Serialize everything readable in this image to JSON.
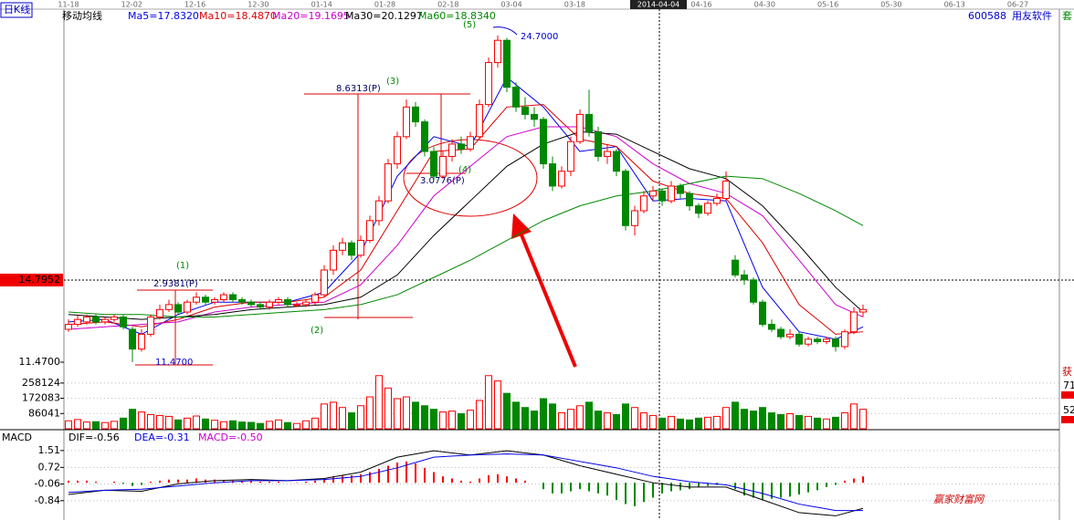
{
  "header": {
    "period": "日K线",
    "indicator": "移动均线",
    "code": "600588",
    "stock_name": "用友软件"
  },
  "side_panel": {
    "tab": "套",
    "label": "获",
    "values": [
      "71.",
      "52."
    ]
  },
  "watermark": "赢家财富网",
  "annotations": {
    "wave_1": "(1)",
    "move_1": "2.9381(P)",
    "low": "11.4700",
    "wave_2": "(2)",
    "move_2": "8.6313(P)",
    "wave_3": "(3)",
    "move_3": "3.0776(P)",
    "wave_4": "(4)",
    "wave_5": "(5)",
    "high": "24.7000"
  },
  "chart_data": [
    {
      "type": "candlestick",
      "up_color": "#ff0000",
      "down_color": "#008800",
      "ylim": [
        11.285,
        25.32
      ],
      "yticks": [
        14.7952,
        {
          "value": 11.47,
          "label": "11.4700"
        }
      ],
      "x_labels": [
        "11-18",
        "12-02",
        "12-16",
        "12-30",
        "01-14",
        "01-28",
        "02-18",
        "03-04",
        "03-18",
        null,
        "04-16",
        "04-30",
        "05-16",
        "05-30",
        "06-13",
        "06-27"
      ],
      "cursor_label": "2014-04-04",
      "ohlc": [
        [
          12.8,
          13.2,
          12.7,
          13.0
        ],
        [
          13.0,
          13.4,
          12.9,
          13.2
        ],
        [
          13.1,
          13.4,
          13.0,
          13.3
        ],
        [
          13.3,
          13.4,
          13.0,
          13.1
        ],
        [
          13.1,
          13.3,
          13.0,
          13.2
        ],
        [
          13.2,
          13.4,
          13.1,
          13.3
        ],
        [
          13.3,
          13.4,
          12.8,
          12.9
        ],
        [
          12.8,
          12.9,
          11.47,
          12.0
        ],
        [
          12.0,
          12.8,
          11.9,
          12.6
        ],
        [
          12.6,
          13.4,
          12.5,
          13.3
        ],
        [
          13.3,
          13.8,
          13.2,
          13.6
        ],
        [
          13.6,
          14.0,
          13.5,
          13.8
        ],
        [
          13.8,
          13.9,
          13.4,
          13.5
        ],
        [
          13.5,
          14.0,
          13.4,
          13.9
        ],
        [
          13.9,
          14.3,
          13.8,
          14.1
        ],
        [
          14.1,
          14.2,
          13.8,
          13.9
        ],
        [
          13.9,
          14.1,
          13.8,
          14.0
        ],
        [
          14.0,
          14.3,
          13.9,
          14.2
        ],
        [
          14.2,
          14.3,
          13.9,
          14.0
        ],
        [
          14.0,
          14.1,
          13.8,
          13.9
        ],
        [
          13.9,
          14.0,
          13.7,
          13.8
        ],
        [
          13.8,
          13.9,
          13.6,
          13.7
        ],
        [
          13.7,
          14.0,
          13.6,
          13.9
        ],
        [
          13.9,
          14.1,
          13.8,
          14.0
        ],
        [
          14.0,
          14.1,
          13.7,
          13.8
        ],
        [
          13.8,
          13.9,
          13.7,
          13.8
        ],
        [
          13.8,
          14.0,
          13.7,
          13.9
        ],
        [
          13.9,
          14.3,
          13.8,
          14.2
        ],
        [
          14.2,
          15.4,
          14.1,
          15.2
        ],
        [
          15.2,
          16.2,
          15.0,
          16.0
        ],
        [
          16.0,
          16.5,
          15.8,
          16.3
        ],
        [
          16.3,
          16.4,
          15.6,
          15.8
        ],
        [
          15.8,
          16.6,
          15.7,
          16.4
        ],
        [
          16.4,
          17.4,
          16.3,
          17.2
        ],
        [
          17.2,
          18.2,
          17.0,
          18.0
        ],
        [
          18.0,
          19.7,
          17.9,
          19.5
        ],
        [
          19.5,
          20.8,
          19.3,
          20.6
        ],
        [
          20.6,
          22.1,
          20.5,
          21.8
        ],
        [
          21.8,
          22.0,
          21.0,
          21.2
        ],
        [
          21.2,
          21.3,
          19.8,
          20.0
        ],
        [
          20.0,
          20.2,
          18.8,
          19.0
        ],
        [
          19.0,
          20.0,
          18.9,
          19.8
        ],
        [
          19.8,
          20.5,
          19.6,
          20.3
        ],
        [
          20.3,
          20.6,
          19.9,
          20.1
        ],
        [
          20.1,
          20.8,
          20.0,
          20.6
        ],
        [
          20.6,
          22.1,
          20.5,
          21.9
        ],
        [
          21.9,
          23.8,
          21.8,
          23.6
        ],
        [
          23.6,
          24.7,
          23.4,
          24.5
        ],
        [
          24.5,
          24.6,
          22.4,
          22.6
        ],
        [
          22.6,
          22.8,
          21.6,
          21.8
        ],
        [
          21.8,
          22.2,
          21.3,
          21.5
        ],
        [
          21.5,
          21.8,
          21.0,
          21.3
        ],
        [
          21.3,
          21.4,
          19.3,
          19.5
        ],
        [
          19.5,
          19.8,
          18.4,
          18.6
        ],
        [
          18.6,
          19.4,
          18.5,
          19.2
        ],
        [
          19.2,
          20.6,
          19.0,
          20.4
        ],
        [
          20.4,
          21.7,
          20.3,
          21.5
        ],
        [
          21.5,
          22.5,
          20.6,
          20.8
        ],
        [
          20.8,
          21.0,
          19.6,
          19.8
        ],
        [
          19.8,
          20.3,
          19.5,
          20.0
        ],
        [
          20.0,
          20.1,
          19.0,
          19.2
        ],
        [
          19.2,
          19.3,
          16.8,
          17.0
        ],
        [
          17.0,
          17.8,
          16.6,
          17.6
        ],
        [
          17.6,
          18.4,
          17.5,
          18.2
        ],
        [
          18.2,
          18.6,
          18.0,
          18.4
        ],
        [
          18.4,
          18.5,
          17.8,
          18.0
        ],
        [
          18.0,
          18.8,
          17.9,
          18.6
        ],
        [
          18.6,
          18.7,
          18.1,
          18.3
        ],
        [
          18.3,
          18.4,
          17.6,
          17.8
        ],
        [
          17.8,
          17.9,
          17.3,
          17.5
        ],
        [
          17.5,
          18.0,
          17.4,
          17.9
        ],
        [
          17.9,
          18.3,
          17.8,
          18.1
        ],
        [
          18.1,
          19.2,
          18.0,
          18.8
        ],
        [
          15.6,
          15.8,
          14.9,
          15.0
        ],
        [
          15.0,
          15.2,
          14.6,
          14.8
        ],
        [
          14.8,
          14.9,
          13.8,
          13.9
        ],
        [
          13.9,
          14.0,
          12.9,
          13.0
        ],
        [
          13.0,
          13.2,
          12.7,
          12.8
        ],
        [
          12.8,
          12.9,
          12.4,
          12.5
        ],
        [
          12.5,
          12.8,
          12.4,
          12.6
        ],
        [
          12.6,
          12.7,
          12.1,
          12.2
        ],
        [
          12.2,
          12.5,
          12.1,
          12.4
        ],
        [
          12.4,
          12.5,
          12.2,
          12.3
        ],
        [
          12.3,
          12.5,
          12.2,
          12.4
        ],
        [
          12.4,
          12.5,
          11.9,
          12.1
        ],
        [
          12.1,
          12.8,
          12.0,
          12.7
        ],
        [
          12.7,
          13.7,
          12.6,
          13.5
        ],
        [
          13.5,
          13.8,
          13.3,
          13.6
        ]
      ],
      "ma_x": [
        0,
        4,
        8,
        12,
        16,
        20,
        24,
        28,
        32,
        36,
        40,
        44,
        48,
        52,
        56,
        60,
        64,
        68,
        72,
        76,
        80,
        84,
        87
      ],
      "series": [
        {
          "name": "Ma5=17.8320",
          "color": "#0000ee",
          "values": [
            13.1,
            13.2,
            12.6,
            13.4,
            13.9,
            13.9,
            13.9,
            14.3,
            15.9,
            19.0,
            20.6,
            20.2,
            23.0,
            21.8,
            20.0,
            20.2,
            18.0,
            18.1,
            18.0,
            14.5,
            12.7,
            12.4,
            12.9
          ]
        },
        {
          "name": "Ma10=18.4870",
          "color": "#dd0000",
          "values": [
            13.0,
            13.1,
            12.9,
            13.2,
            13.7,
            13.9,
            13.9,
            14.1,
            15.2,
            17.6,
            20.0,
            20.1,
            21.8,
            21.9,
            20.5,
            20.2,
            18.8,
            18.3,
            18.1,
            16.3,
            13.8,
            12.6,
            12.7
          ]
        },
        {
          "name": "Ma20=19.1695",
          "color": "#cc00cc",
          "values": [
            12.8,
            12.9,
            13.0,
            13.1,
            13.5,
            13.7,
            13.8,
            13.9,
            14.6,
            16.2,
            18.2,
            19.4,
            20.6,
            21.0,
            21.0,
            20.6,
            19.5,
            18.7,
            18.3,
            17.4,
            15.6,
            13.8,
            13.3
          ]
        },
        {
          "name": "Ma30=20.1297",
          "color": "#000000",
          "values": [
            13.4,
            13.3,
            13.2,
            13.3,
            13.4,
            13.6,
            13.7,
            13.8,
            14.1,
            15.0,
            16.6,
            18.0,
            19.4,
            20.3,
            20.8,
            20.7,
            20.0,
            19.3,
            18.9,
            17.8,
            16.2,
            14.5,
            13.5
          ]
        },
        {
          "name": "Ma60=18.8340",
          "color": "#008800",
          "values": [
            13.5,
            13.4,
            13.4,
            13.3,
            13.3,
            13.4,
            13.5,
            13.6,
            13.8,
            14.2,
            14.9,
            15.6,
            16.4,
            17.2,
            17.8,
            18.2,
            18.4,
            18.7,
            19.0,
            18.9,
            18.3,
            17.6,
            17.0
          ]
        }
      ]
    },
    {
      "type": "bar",
      "ylim": [
        0,
        340000
      ],
      "yticks": [
        86041,
        172083,
        258124
      ],
      "grid": true,
      "values": [
        45000,
        52000,
        38000,
        40000,
        35000,
        42000,
        60000,
        110000,
        95000,
        80000,
        75000,
        70000,
        50000,
        60000,
        72000,
        55000,
        48000,
        40000,
        45000,
        38000,
        36000,
        30000,
        42000,
        50000,
        35000,
        30000,
        45000,
        60000,
        140000,
        150000,
        120000,
        90000,
        130000,
        180000,
        300000,
        230000,
        170000,
        180000,
        150000,
        130000,
        110000,
        95000,
        100000,
        85000,
        105000,
        160000,
        300000,
        270000,
        200000,
        150000,
        120000,
        100000,
        170000,
        140000,
        90000,
        110000,
        130000,
        150000,
        100000,
        90000,
        80000,
        140000,
        120000,
        90000,
        75000,
        60000,
        70000,
        55000,
        50000,
        60000,
        65000,
        70000,
        120000,
        150000,
        110000,
        100000,
        120000,
        90000,
        80000,
        85000,
        75000,
        70000,
        60000,
        55000,
        65000,
        90000,
        140000,
        110000
      ]
    },
    {
      "type": "line",
      "title": "MACD",
      "ylim": [
        -1.66,
        1.89
      ],
      "yticks": [
        1.51,
        0.72,
        -0.06,
        -0.84
      ],
      "grid": true,
      "histogram": {
        "name": "MACD=-0.50",
        "color": "#cc00cc",
        "up_color": "#ff0000",
        "down_color": "#008800",
        "values": [
          0.1,
          0.1,
          0.1,
          0.05,
          0.0,
          0.05,
          -0.05,
          -0.15,
          -0.1,
          0.05,
          0.1,
          0.15,
          0.15,
          0.15,
          0.2,
          0.15,
          0.15,
          0.12,
          0.1,
          0.1,
          0.08,
          0.05,
          0.05,
          0.05,
          0.0,
          0.02,
          0.05,
          0.1,
          0.2,
          0.3,
          0.35,
          0.35,
          0.4,
          0.5,
          0.65,
          0.8,
          0.95,
          1.0,
          0.9,
          0.7,
          0.5,
          0.3,
          0.2,
          0.1,
          0.05,
          0.2,
          0.35,
          0.4,
          0.3,
          0.2,
          0.1,
          0.0,
          -0.3,
          -0.5,
          -0.5,
          -0.4,
          -0.3,
          -0.4,
          -0.5,
          -0.6,
          -0.8,
          -1.0,
          -1.1,
          -0.9,
          -0.7,
          -0.5,
          -0.4,
          -0.35,
          -0.3,
          -0.2,
          -0.15,
          -0.1,
          0.0,
          -0.3,
          -0.6,
          -0.7,
          -0.8,
          -0.75,
          -0.7,
          -0.65,
          -0.55,
          -0.45,
          -0.35,
          -0.2,
          -0.1,
          0.1,
          0.2,
          0.3
        ]
      },
      "x": [
        0,
        4,
        8,
        12,
        16,
        20,
        24,
        28,
        32,
        36,
        40,
        44,
        48,
        52,
        56,
        60,
        64,
        68,
        72,
        76,
        80,
        84,
        87
      ],
      "series": [
        {
          "name": "DIF=-0.56",
          "color": "#000000",
          "values": [
            -0.55,
            -0.35,
            -0.4,
            -0.05,
            0.1,
            0.15,
            0.1,
            0.2,
            0.5,
            1.2,
            1.5,
            1.3,
            1.5,
            1.3,
            0.8,
            0.4,
            0.0,
            -0.2,
            -0.2,
            -0.8,
            -1.4,
            -1.55,
            -1.2
          ]
        },
        {
          "name": "DEA=-0.31",
          "color": "#0000ee",
          "values": [
            -0.45,
            -0.35,
            -0.3,
            -0.15,
            0.0,
            0.1,
            0.1,
            0.15,
            0.3,
            0.7,
            1.2,
            1.3,
            1.35,
            1.3,
            1.0,
            0.7,
            0.3,
            0.05,
            -0.1,
            -0.5,
            -1.0,
            -1.3,
            -1.3
          ]
        }
      ]
    }
  ]
}
